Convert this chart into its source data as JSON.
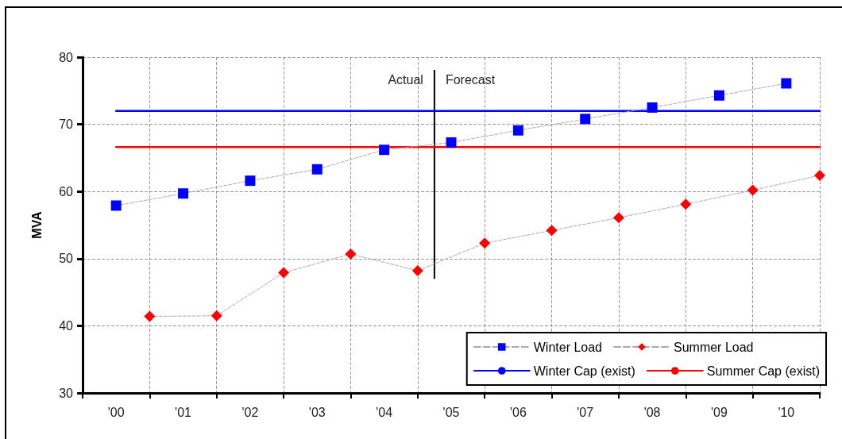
{
  "chart_data": {
    "type": "line",
    "ylabel": "MVA",
    "categories": [
      null,
      "'00",
      null,
      "'01",
      null,
      "'02",
      null,
      "'03",
      null,
      "'04",
      null,
      "'05",
      null,
      "'06",
      null,
      "'07",
      null,
      "'08",
      null,
      "'09",
      null,
      "'10",
      null
    ],
    "series": [
      {
        "name": "Winter Load",
        "color": "#0000ff",
        "marker": "square",
        "line_style": "dashed",
        "values": [
          null,
          57.9,
          null,
          59.7,
          null,
          61.6,
          null,
          63.3,
          null,
          66.2,
          null,
          67.3,
          null,
          69.1,
          null,
          70.8,
          null,
          72.5,
          null,
          74.3,
          null,
          76.1,
          null
        ]
      },
      {
        "name": "Summer Load",
        "color": "#ff0000",
        "marker": "diamond",
        "line_style": "dashed",
        "values": [
          null,
          null,
          41.4,
          null,
          41.5,
          null,
          47.9,
          null,
          50.7,
          null,
          48.2,
          null,
          52.3,
          null,
          54.2,
          null,
          56.1,
          null,
          58.1,
          null,
          60.2,
          null,
          62.4
        ]
      },
      {
        "name": "Winter Cap (exist)",
        "color": "#0000ff",
        "marker": "none",
        "line_style": "solid",
        "values": [
          null,
          72,
          72,
          72,
          72,
          72,
          72,
          72,
          72,
          72,
          72,
          72,
          72,
          72,
          72,
          72,
          72,
          72,
          72,
          72,
          72,
          72,
          72
        ]
      },
      {
        "name": "Summer Cap (exist)",
        "color": "#ff0000",
        "marker": "none",
        "line_style": "solid",
        "values": [
          null,
          66.6,
          66.6,
          66.6,
          66.6,
          66.6,
          66.6,
          66.6,
          66.6,
          66.6,
          66.6,
          66.6,
          66.6,
          66.6,
          66.6,
          66.6,
          66.6,
          66.6,
          66.6,
          66.6,
          66.6,
          66.6,
          66.6
        ]
      }
    ],
    "annotations": [
      "Actual",
      "Forecast"
    ],
    "ylim": [
      30,
      80
    ],
    "yticks": [
      30,
      40,
      50,
      60,
      70,
      80
    ],
    "grid": true,
    "legend": "bottom right"
  }
}
